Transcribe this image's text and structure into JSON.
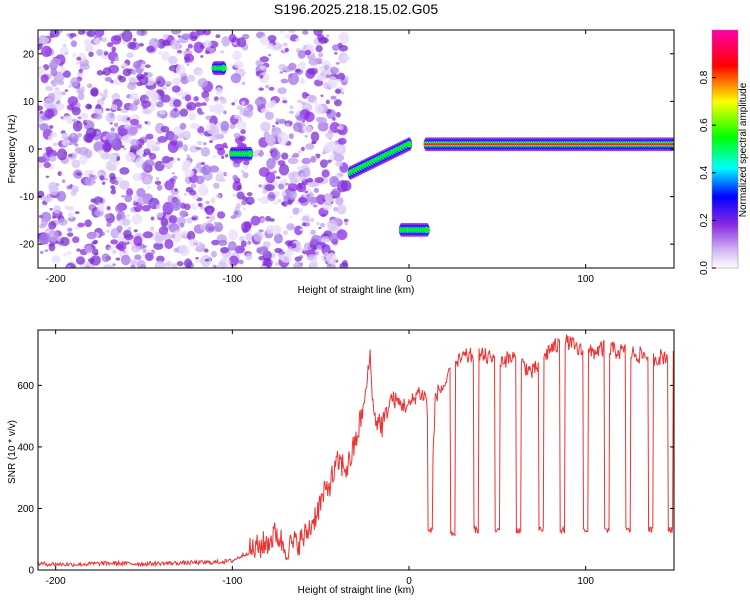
{
  "title": "S196.2025.218.15.02.G05",
  "chart_data": [
    {
      "type": "heatmap",
      "xlabel": "Height of straight line (km)",
      "ylabel": "Frequency (Hz)",
      "xlim": [
        -210,
        150
      ],
      "ylim": [
        -25,
        25
      ],
      "x_ticks": [
        -200,
        -100,
        0,
        100
      ],
      "y_ticks": [
        -20,
        -10,
        0,
        10,
        20
      ],
      "colorbar": {
        "label": "Normalized spectral amplitude",
        "range": [
          0,
          1
        ],
        "ticks": [
          0.0,
          0.2,
          0.4,
          0.6,
          0.8
        ],
        "palette": [
          "#ffffff",
          "#8a2be2",
          "#0000ff",
          "#00ffff",
          "#00ff00",
          "#ffff00",
          "#ff0000",
          "#ff00ff"
        ]
      },
      "features": [
        {
          "x_range": [
            -210,
            -35
          ],
          "frequency": "broadband noise",
          "amplitude": 0.1
        },
        {
          "x_range": [
            -110,
            -105
          ],
          "frequency": 17,
          "amplitude": 0.25
        },
        {
          "x_range": [
            -100,
            -90
          ],
          "frequency": -1,
          "amplitude": 0.3
        },
        {
          "x_range": [
            -33,
            0
          ],
          "frequency": [
            -5,
            1
          ],
          "amplitude": 0.4
        },
        {
          "x_range": [
            -4,
            10
          ],
          "frequency": -17,
          "amplitude": 0.4
        },
        {
          "x_range": [
            10,
            150
          ],
          "frequency": 1,
          "amplitude": 0.75
        }
      ]
    },
    {
      "type": "line",
      "xlabel": "Height of straight line (km)",
      "ylabel": "SNR (10 * v/v)",
      "xlim": [
        -210,
        150
      ],
      "ylim": [
        0,
        780
      ],
      "x_ticks": [
        -200,
        -100,
        0,
        100
      ],
      "y_ticks": [
        0,
        200,
        400,
        600
      ],
      "color": "#ee3333",
      "x": [
        -210,
        -190,
        -170,
        -150,
        -130,
        -110,
        -100,
        -90,
        -80,
        -75,
        -70,
        -60,
        -55,
        -50,
        -45,
        -40,
        -35,
        -30,
        -25,
        -22,
        -20,
        -15,
        -10,
        -5,
        0,
        5,
        10,
        12,
        15,
        20,
        25,
        30,
        40,
        50,
        60,
        70,
        80,
        90,
        100,
        110,
        120,
        130,
        140,
        150
      ],
      "y": [
        20,
        18,
        22,
        20,
        23,
        25,
        30,
        60,
        90,
        120,
        70,
        100,
        150,
        220,
        280,
        350,
        330,
        420,
        550,
        700,
        500,
        470,
        560,
        540,
        530,
        580,
        560,
        130,
        570,
        600,
        650,
        690,
        700,
        680,
        690,
        640,
        720,
        740,
        700,
        720,
        710,
        700,
        690,
        700
      ],
      "dropouts": [
        {
          "x": 12,
          "y": 130
        },
        {
          "x": 25,
          "y": 120
        },
        {
          "x": 38,
          "y": 130
        },
        {
          "x": 50,
          "y": 130
        },
        {
          "x": 62,
          "y": 130
        },
        {
          "x": 75,
          "y": 130
        },
        {
          "x": 87,
          "y": 130
        },
        {
          "x": 100,
          "y": 130
        },
        {
          "x": 112,
          "y": 130
        },
        {
          "x": 124,
          "y": 130
        },
        {
          "x": 137,
          "y": 130
        },
        {
          "x": 148,
          "y": 130
        }
      ]
    }
  ]
}
